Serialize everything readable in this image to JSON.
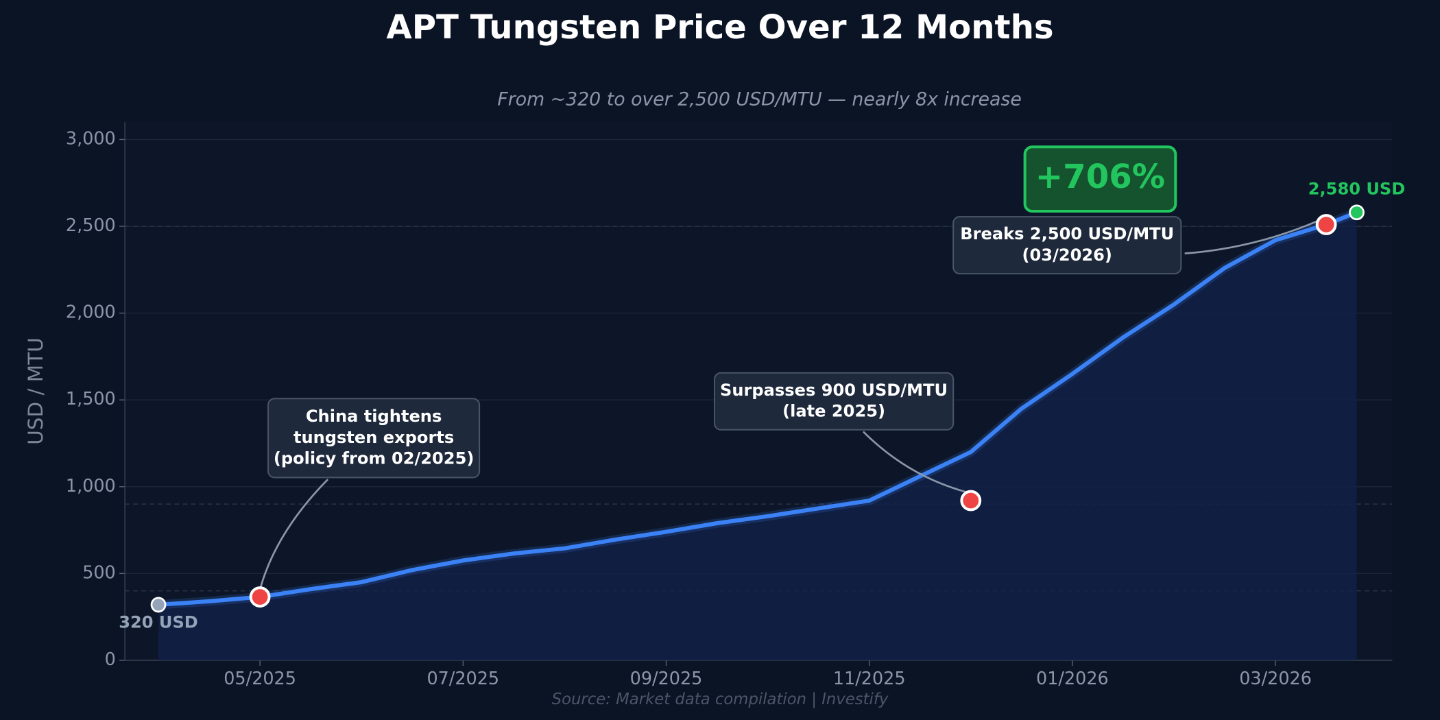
{
  "chart_data": {
    "type": "line",
    "title": "APT Tungsten Price Over 12 Months",
    "subtitle": "From ~320 to over 2,500 USD/MTU — nearly 8x increase",
    "y_label": "USD / MTU",
    "source": "Source: Market data compilation  |  Investify",
    "badge": "+706%",
    "color": "#3b82f6",
    "x": [
      0,
      0.5,
      1,
      1.5,
      2,
      2.5,
      3,
      3.5,
      4,
      4.5,
      5,
      5.5,
      6,
      6.5,
      7,
      7.5,
      8,
      8.5,
      9,
      9.5,
      10,
      10.5,
      11,
      11.5,
      11.8
    ],
    "values": [
      320,
      340,
      365,
      410,
      450,
      520,
      575,
      615,
      645,
      695,
      740,
      790,
      830,
      875,
      920,
      1060,
      1200,
      1450,
      1650,
      1860,
      2050,
      2260,
      2420,
      2510,
      2580
    ],
    "value_labels": [
      "320 USD",
      null,
      null,
      null,
      null,
      null,
      null,
      null,
      null,
      null,
      null,
      null,
      null,
      null,
      null,
      null,
      null,
      null,
      null,
      null,
      null,
      null,
      null,
      null,
      "2,580 USD"
    ],
    "xlim": [
      -0.33,
      12.15
    ],
    "xticks": [
      {
        "value": 1,
        "label": "05/2025"
      },
      {
        "value": 3,
        "label": "07/2025"
      },
      {
        "value": 5,
        "label": "09/2025"
      },
      {
        "value": 7,
        "label": "11/2025"
      },
      {
        "value": 9,
        "label": "01/2026"
      },
      {
        "value": 11,
        "label": "03/2026"
      }
    ],
    "ylim": [
      0,
      3100
    ],
    "yticks": [
      0,
      500,
      {
        "value": 1000,
        "label": "1,000"
      },
      {
        "value": 1500,
        "label": "1,500"
      },
      {
        "value": 2000,
        "label": "2,000"
      },
      {
        "value": 2500,
        "label": "2,500"
      },
      {
        "value": 3000,
        "label": "3,000"
      }
    ],
    "grid": true,
    "reference_lines": [
      400,
      900,
      2500
    ],
    "annotations": [
      {
        "lines": [
          "China tightens",
          "tungsten exports",
          "(policy from 02/2025)"
        ],
        "x": 1,
        "y": 365
      },
      {
        "lines": [
          "Surpasses 900 USD/MTU",
          "(late 2025)"
        ],
        "x": 8,
        "y": 920
      },
      {
        "lines": [
          "Breaks 2,500 USD/MTU",
          "(03/2026)"
        ],
        "x": 11.5,
        "y": 2510
      }
    ]
  }
}
